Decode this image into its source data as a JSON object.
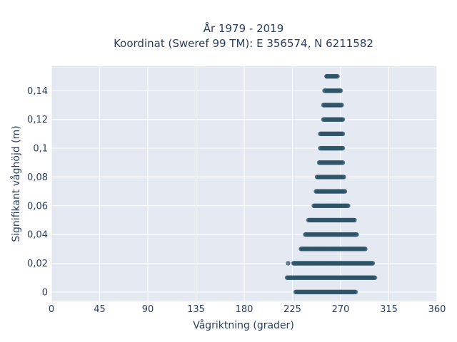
{
  "chart_data": {
    "type": "scatter",
    "title_lines": [
      "År 1979 - 2019",
      "Koordinat (Sweref 99 TM): E 356574, N 6211582"
    ],
    "xlabel": "Vågriktning (grader)",
    "ylabel": "Signifikant våghöjd (m)",
    "xlim": [
      0,
      360
    ],
    "ylim": [
      -0.0065,
      0.157
    ],
    "x_ticks": [
      0,
      45,
      90,
      135,
      180,
      225,
      270,
      315,
      360
    ],
    "x_tick_labels": [
      "0",
      "45",
      "90",
      "135",
      "180",
      "225",
      "270",
      "315",
      "360"
    ],
    "y_ticks": [
      0,
      0.02,
      0.04,
      0.06,
      0.08,
      0.1,
      0.12,
      0.14
    ],
    "y_tick_labels": [
      "0",
      "0,02",
      "0,04",
      "0,06",
      "0,08",
      "0,1",
      "0,12",
      "0,14"
    ],
    "grid": true,
    "background": "#e5e9f2",
    "marker_color": "#2f5468",
    "series": [
      {
        "points_summary": "Dense horizontal bands of points: wave height (m) vs direction (degrees), x range per height level",
        "bands": [
          {
            "y": 0.0,
            "x_min": 228,
            "x_max": 284
          },
          {
            "y": 0.01,
            "x_min": 220,
            "x_max": 302
          },
          {
            "y": 0.02,
            "x_min": 226,
            "x_max": 300
          },
          {
            "y": 0.03,
            "x_min": 233,
            "x_max": 293
          },
          {
            "y": 0.04,
            "x_min": 237,
            "x_max": 285
          },
          {
            "y": 0.05,
            "x_min": 240,
            "x_max": 283
          },
          {
            "y": 0.06,
            "x_min": 245,
            "x_max": 277
          },
          {
            "y": 0.07,
            "x_min": 247,
            "x_max": 274
          },
          {
            "y": 0.08,
            "x_min": 248,
            "x_max": 273
          },
          {
            "y": 0.09,
            "x_min": 250,
            "x_max": 272
          },
          {
            "y": 0.1,
            "x_min": 251,
            "x_max": 272
          },
          {
            "y": 0.11,
            "x_min": 251,
            "x_max": 272
          },
          {
            "y": 0.12,
            "x_min": 254,
            "x_max": 272
          },
          {
            "y": 0.13,
            "x_min": 254,
            "x_max": 271
          },
          {
            "y": 0.14,
            "x_min": 256,
            "x_max": 270
          },
          {
            "y": 0.15,
            "x_min": 257,
            "x_max": 267
          }
        ],
        "outliers": [
          {
            "x": 221,
            "y": 0.02
          },
          {
            "x": 255,
            "y": 0.14
          },
          {
            "x": 257,
            "y": 0.15
          }
        ]
      }
    ]
  }
}
